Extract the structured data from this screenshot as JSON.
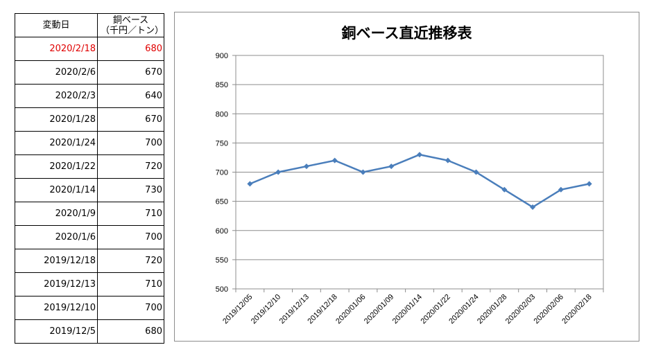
{
  "table": {
    "header": {
      "date": "変動日",
      "value_line1": "銅ベース",
      "value_line2": "（千円／トン）"
    },
    "rows": [
      {
        "date": "2020/2/18",
        "value": "680",
        "highlight": true
      },
      {
        "date": "2020/2/6",
        "value": "670"
      },
      {
        "date": "2020/2/3",
        "value": "640"
      },
      {
        "date": "2020/1/28",
        "value": "670"
      },
      {
        "date": "2020/1/24",
        "value": "700"
      },
      {
        "date": "2020/1/22",
        "value": "720"
      },
      {
        "date": "2020/1/14",
        "value": "730"
      },
      {
        "date": "2020/1/9",
        "value": "710"
      },
      {
        "date": "2020/1/6",
        "value": "700"
      },
      {
        "date": "2019/12/18",
        "value": "720"
      },
      {
        "date": "2019/12/13",
        "value": "710"
      },
      {
        "date": "2019/12/10",
        "value": "700"
      },
      {
        "date": "2019/12/5",
        "value": "680"
      }
    ],
    "highlight_color": "#e00000"
  },
  "chart_data": {
    "type": "line",
    "title": "銅ベース直近推移表",
    "categories": [
      "2019/12/05",
      "2019/12/10",
      "2019/12/13",
      "2019/12/18",
      "2020/01/06",
      "2020/01/09",
      "2020/01/14",
      "2020/01/22",
      "2020/01/24",
      "2020/01/28",
      "2020/02/03",
      "2020/02/06",
      "2020/02/18"
    ],
    "series": [
      {
        "values": [
          680,
          700,
          710,
          720,
          700,
          710,
          730,
          720,
          700,
          670,
          640,
          670,
          680
        ],
        "color": "#4a7ebb",
        "marker": "diamond"
      }
    ],
    "ylim": [
      500,
      900
    ],
    "yticks": [
      500,
      550,
      600,
      650,
      700,
      750,
      800,
      850,
      900
    ],
    "grid": true,
    "xlabel": "",
    "ylabel": ""
  }
}
